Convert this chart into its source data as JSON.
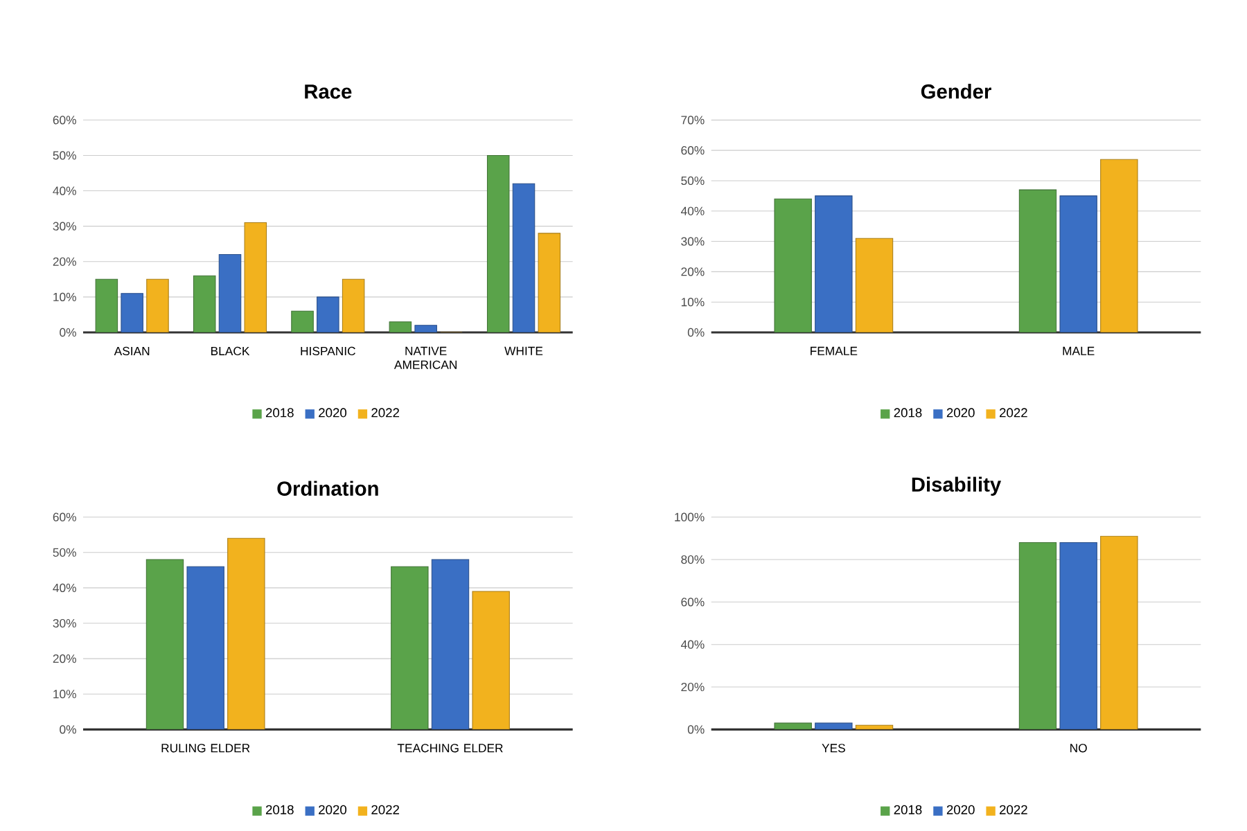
{
  "chart_data": [
    {
      "type": "bar",
      "title": "Race",
      "categories": [
        "ASIAN",
        "BLACK",
        "HISPANIC",
        "NATIVE AMERICAN",
        "WHITE"
      ],
      "series": [
        {
          "name": "2018",
          "color": "#5aa34a",
          "values": [
            15,
            16,
            6,
            3,
            50
          ]
        },
        {
          "name": "2020",
          "color": "#3a6fc4",
          "values": [
            11,
            22,
            10,
            2,
            42
          ]
        },
        {
          "name": "2022",
          "color": "#f2b21e",
          "values": [
            15,
            31,
            15,
            0,
            28
          ]
        }
      ],
      "ylim": [
        0,
        60
      ],
      "yticks": [
        {
          "value": 0,
          "label": "0%"
        },
        {
          "value": 10,
          "label": "10%"
        },
        {
          "value": 20,
          "label": "20%"
        },
        {
          "value": 30,
          "label": "30%"
        },
        {
          "value": 40,
          "label": "40%"
        },
        {
          "value": 50,
          "label": "50%"
        },
        {
          "value": 60,
          "label": "60%"
        }
      ],
      "grid": "y",
      "legend": "bottom"
    },
    {
      "type": "bar",
      "title": "Gender",
      "categories": [
        "FEMALE",
        "MALE"
      ],
      "series": [
        {
          "name": "2018",
          "color": "#5aa34a",
          "values": [
            44,
            47
          ]
        },
        {
          "name": "2020",
          "color": "#3a6fc4",
          "values": [
            45,
            45
          ]
        },
        {
          "name": "2022",
          "color": "#f2b21e",
          "values": [
            31,
            57
          ]
        }
      ],
      "ylim": [
        0,
        70
      ],
      "yticks": [
        {
          "value": 0,
          "label": "0%"
        },
        {
          "value": 10,
          "label": "10%"
        },
        {
          "value": 20,
          "label": "20%"
        },
        {
          "value": 30,
          "label": "30%"
        },
        {
          "value": 40,
          "label": "40%"
        },
        {
          "value": 50,
          "label": "50%"
        },
        {
          "value": 60,
          "label": "60%"
        },
        {
          "value": 70,
          "label": "70%"
        }
      ],
      "grid": "y",
      "legend": "bottom"
    },
    {
      "type": "bar",
      "title": "Ordination",
      "categories": [
        "RULING ELDER",
        "TEACHING ELDER"
      ],
      "series": [
        {
          "name": "2018",
          "color": "#5aa34a",
          "values": [
            48,
            46
          ]
        },
        {
          "name": "2020",
          "color": "#3a6fc4",
          "values": [
            46,
            48
          ]
        },
        {
          "name": "2022",
          "color": "#f2b21e",
          "values": [
            54,
            39
          ]
        }
      ],
      "ylim": [
        0,
        60
      ],
      "yticks": [
        {
          "value": 0,
          "label": "0%"
        },
        {
          "value": 10,
          "label": "10%"
        },
        {
          "value": 20,
          "label": "20%"
        },
        {
          "value": 30,
          "label": "30%"
        },
        {
          "value": 40,
          "label": "40%"
        },
        {
          "value": 50,
          "label": "50%"
        },
        {
          "value": 60,
          "label": "60%"
        }
      ],
      "grid": "y",
      "legend": "bottom"
    },
    {
      "type": "bar",
      "title": "Disability",
      "categories": [
        "YES",
        "NO"
      ],
      "series": [
        {
          "name": "2018",
          "color": "#5aa34a",
          "values": [
            3,
            88
          ]
        },
        {
          "name": "2020",
          "color": "#3a6fc4",
          "values": [
            3,
            88
          ]
        },
        {
          "name": "2022",
          "color": "#f2b21e",
          "values": [
            2,
            91
          ]
        }
      ],
      "ylim": [
        0,
        100
      ],
      "yticks": [
        {
          "value": 0,
          "label": "0%"
        },
        {
          "value": 20,
          "label": "20%"
        },
        {
          "value": 40,
          "label": "40%"
        },
        {
          "value": 60,
          "label": "60%"
        },
        {
          "value": 80,
          "label": "80%"
        },
        {
          "value": 100,
          "label": "100%"
        }
      ],
      "grid": "y",
      "legend": "bottom"
    }
  ]
}
